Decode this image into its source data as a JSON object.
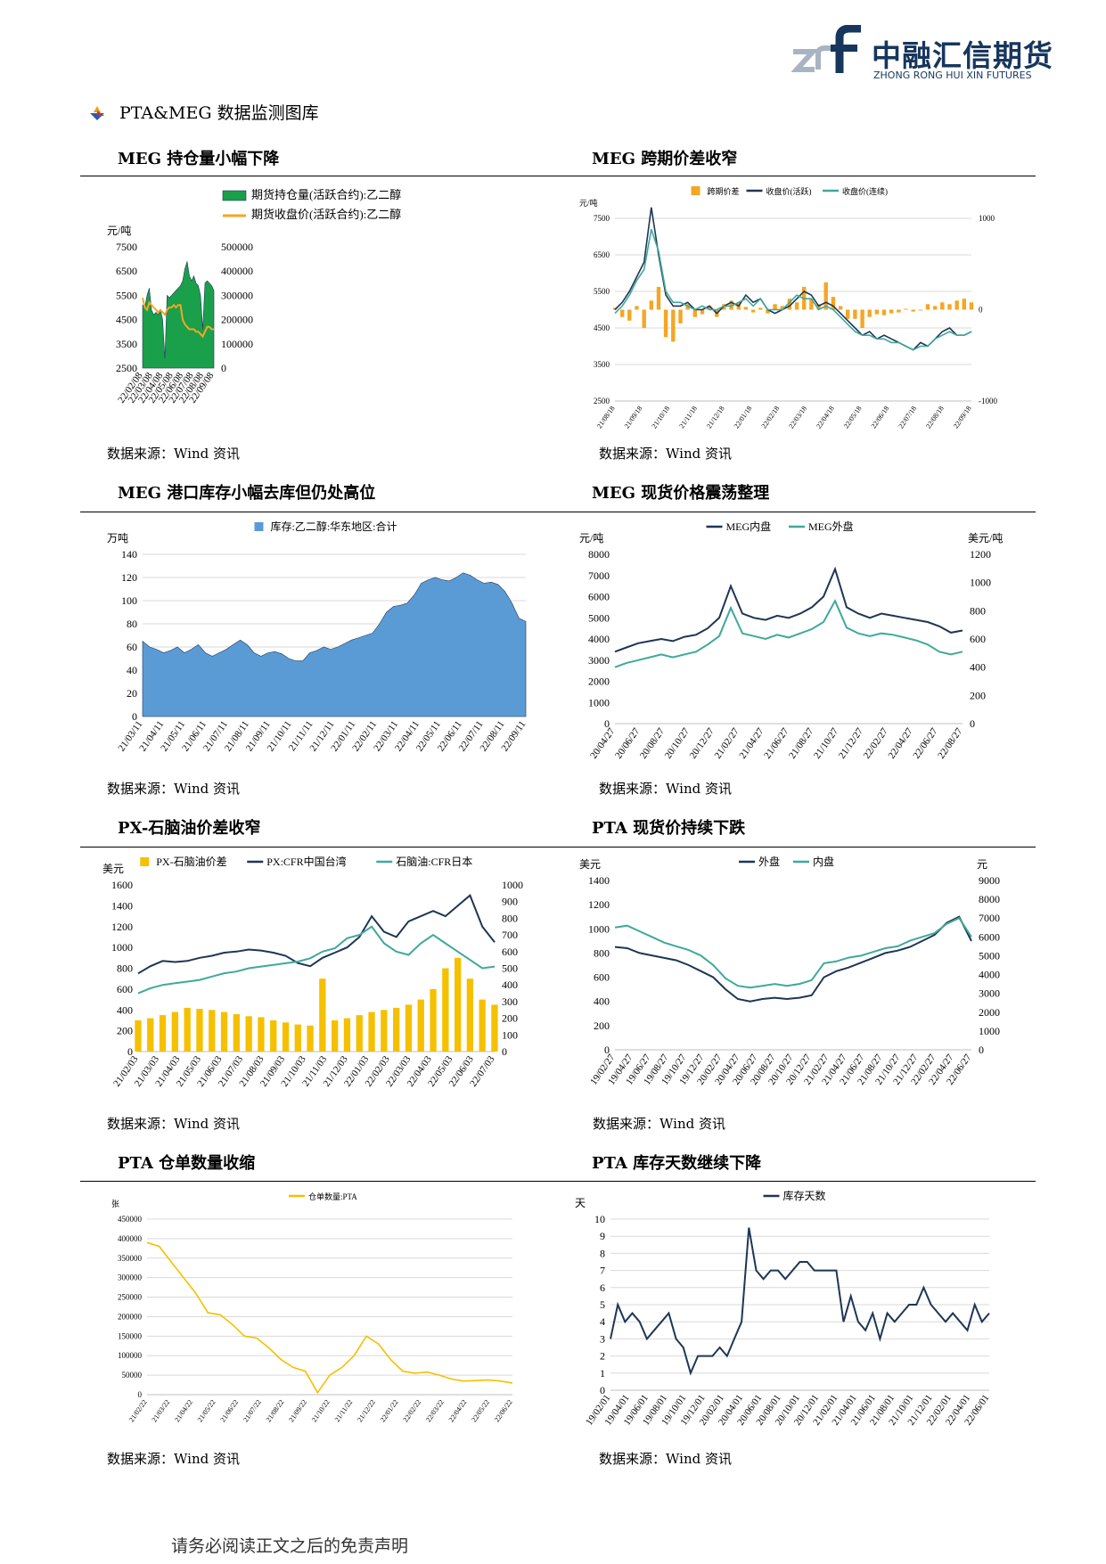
{
  "header": {
    "logo_cn": "中融汇信期货",
    "logo_en": "ZHONG RONG HUI XIN FUTURES"
  },
  "section_title": "PTA&MEG 数据监测图库",
  "footer": "请务必阅读正文之后的免责声明",
  "colors": {
    "green": "#1a9f4a",
    "orange": "#f5a623",
    "navy": "#1e3654",
    "teal": "#3fa99a",
    "blue": "#5b9bd5",
    "gold": "#f5c000"
  },
  "panels": [
    {
      "title": "MEG 持仓量小幅下降",
      "source": "数据来源：Wind 资讯"
    },
    {
      "title": "MEG 跨期价差收窄",
      "source": "数据来源：Wind 资讯"
    },
    {
      "title": "MEG 港口库存小幅去库但仍处高位",
      "source": "数据来源：Wind 资讯"
    },
    {
      "title": "MEG 现货价格震荡整理",
      "source": "数据来源：Wind 资讯"
    },
    {
      "title": "PX-石脑油价差收窄",
      "source": "数据来源：Wind 资讯"
    },
    {
      "title": "PTA 现货价持续下跌",
      "source": "数据来源：Wind 资讯"
    },
    {
      "title": "PTA 仓单数量收缩",
      "source": "数据来源：Wind 资讯"
    },
    {
      "title": "PTA 库存天数继续下降",
      "source": "数据来源：Wind 资讯"
    }
  ],
  "chart_data": [
    {
      "id": "c1",
      "type": "area+line",
      "unit_left": "元/吨",
      "series": [
        {
          "name": "期货持仓量(活跃合约):乙二醇",
          "type": "area",
          "axis": "right",
          "color": "#1a9f4a",
          "values": [
            260000,
            250000,
            300000,
            330000,
            240000,
            220000,
            230000,
            220000,
            240000,
            200000,
            40000,
            300000,
            290000,
            300000,
            310000,
            320000,
            330000,
            340000,
            360000,
            410000,
            440000,
            380000,
            360000,
            380000,
            350000,
            340000,
            300000,
            160000,
            350000,
            360000,
            350000,
            340000,
            320000
          ]
        },
        {
          "name": "期货收盘价(活跃合约):乙二醇",
          "type": "line",
          "axis": "left",
          "color": "#f5a623",
          "values": [
            5400,
            5000,
            4900,
            5200,
            5100,
            5000,
            4900,
            4800,
            4900,
            4800,
            4700,
            4900,
            5000,
            5000,
            5100,
            5000,
            5100,
            5100,
            4500,
            4300,
            4200,
            4100,
            4100,
            4100,
            4000,
            4000,
            3900,
            3800,
            4000,
            4200,
            4200,
            4100,
            4100
          ]
        }
      ],
      "x_ticks": [
        "22/02/08",
        "22/03/08",
        "22/04/08",
        "22/05/08",
        "22/06/08",
        "22/07/08",
        "22/08/08",
        "22/09/08"
      ],
      "y_left": {
        "min": 2500,
        "max": 7500,
        "ticks": [
          2500,
          3500,
          4500,
          5500,
          6500,
          7500
        ]
      },
      "y_right": {
        "min": 0,
        "max": 500000,
        "ticks": [
          0,
          100000,
          200000,
          300000,
          400000,
          500000
        ]
      }
    },
    {
      "id": "c2",
      "type": "bar+line",
      "unit_left": "元/吨",
      "series": [
        {
          "name": "跨期价差",
          "type": "bar",
          "axis": "right",
          "color": "#f5a623",
          "values": [
            20,
            -80,
            -120,
            40,
            -200,
            100,
            250,
            -300,
            -350,
            -150,
            60,
            -80,
            -50,
            40,
            -80,
            60,
            100,
            80,
            30,
            -30,
            20,
            -40,
            60,
            40,
            120,
            80,
            250,
            120,
            60,
            300,
            140,
            40,
            -100,
            -100,
            -200,
            -80,
            -50,
            -60,
            -40,
            -30,
            10,
            -20,
            -10,
            60,
            40,
            80,
            60,
            100,
            120,
            80
          ]
        },
        {
          "name": "收盘价(活跃)",
          "type": "line",
          "axis": "left",
          "color": "#1e3654",
          "values": [
            5000,
            5200,
            5500,
            5900,
            6300,
            7800,
            6500,
            5400,
            5100,
            5100,
            5200,
            5000,
            5000,
            5100,
            4900,
            5100,
            5200,
            5100,
            5400,
            5200,
            5300,
            5000,
            4900,
            5000,
            5100,
            5300,
            5500,
            5400,
            5100,
            5200,
            5100,
            4900,
            4700,
            4500,
            4300,
            4400,
            4200,
            4300,
            4200,
            4100,
            4000,
            3900,
            4100,
            4000,
            4200,
            4400,
            4500,
            4300,
            4300,
            4400
          ]
        },
        {
          "name": "收盘价(连续)",
          "type": "line",
          "axis": "left",
          "color": "#3fa99a",
          "values": [
            4900,
            5100,
            5400,
            5800,
            6100,
            7200,
            6600,
            5500,
            5200,
            5200,
            5100,
            5000,
            5100,
            5000,
            5000,
            5100,
            5100,
            5200,
            5300,
            5100,
            5300,
            5000,
            5000,
            5000,
            5200,
            5400,
            5300,
            5300,
            5000,
            5100,
            5000,
            4800,
            4600,
            4400,
            4300,
            4300,
            4200,
            4200,
            4100,
            4100,
            4000,
            3900,
            4000,
            4000,
            4200,
            4300,
            4400,
            4300,
            4300,
            4400
          ]
        }
      ],
      "x_ticks": [
        "21/08/18",
        "21/09/18",
        "21/10/18",
        "21/11/18",
        "21/12/18",
        "22/01/18",
        "22/02/18",
        "22/03/18",
        "22/04/18",
        "22/05/18",
        "22/06/18",
        "22/07/18",
        "22/08/18",
        "22/09/18"
      ],
      "y_left": {
        "min": 2500,
        "max": 7500,
        "ticks": [
          2500,
          3500,
          4500,
          5500,
          6500,
          7500
        ]
      },
      "y_right": {
        "min": -1000,
        "max": 1000,
        "ticks": [
          -1000,
          0,
          1000
        ]
      }
    },
    {
      "id": "c3",
      "type": "area",
      "unit_left": "万吨",
      "series": [
        {
          "name": "库存:乙二醇:华东地区:合计",
          "type": "area",
          "axis": "left",
          "color": "#5b9bd5",
          "values": [
            65,
            60,
            58,
            55,
            57,
            60,
            55,
            58,
            62,
            55,
            52,
            55,
            58,
            62,
            66,
            62,
            55,
            52,
            55,
            56,
            54,
            50,
            48,
            48,
            55,
            57,
            60,
            58,
            60,
            63,
            66,
            68,
            70,
            72,
            80,
            90,
            95,
            96,
            98,
            105,
            115,
            118,
            120,
            118,
            117,
            120,
            124,
            122,
            118,
            115,
            116,
            114,
            108,
            98,
            85,
            82
          ]
        }
      ],
      "x_ticks": [
        "21/03/11",
        "21/04/11",
        "21/05/11",
        "21/06/11",
        "21/07/11",
        "21/08/11",
        "21/09/11",
        "21/10/11",
        "21/11/11",
        "21/12/11",
        "22/01/11",
        "22/02/11",
        "22/03/11",
        "22/04/11",
        "22/05/11",
        "22/06/11",
        "22/07/11",
        "22/08/11",
        "22/09/11"
      ],
      "y_left": {
        "min": 0,
        "max": 140,
        "ticks": [
          0,
          20,
          40,
          60,
          80,
          100,
          120,
          140
        ]
      }
    },
    {
      "id": "c4",
      "type": "line",
      "unit_left": "元/吨",
      "unit_right": "美元/吨",
      "series": [
        {
          "name": "MEG内盘",
          "type": "line",
          "axis": "left",
          "color": "#1e3654",
          "values": [
            3400,
            3600,
            3800,
            3900,
            4000,
            3900,
            4100,
            4200,
            4500,
            5000,
            6500,
            5200,
            5000,
            4900,
            5100,
            5000,
            5200,
            5500,
            6000,
            7300,
            5500,
            5200,
            5000,
            5200,
            5100,
            5000,
            4900,
            4800,
            4600,
            4300,
            4400
          ]
        },
        {
          "name": "MEG外盘",
          "type": "line",
          "axis": "right",
          "color": "#3fa99a",
          "values": [
            400,
            430,
            450,
            470,
            490,
            470,
            490,
            510,
            560,
            620,
            820,
            640,
            620,
            600,
            630,
            610,
            640,
            670,
            720,
            870,
            680,
            640,
            620,
            640,
            630,
            610,
            590,
            560,
            510,
            490,
            510
          ]
        }
      ],
      "x_ticks": [
        "20/04/27",
        "20/06/27",
        "20/08/27",
        "20/10/27",
        "20/12/27",
        "21/02/27",
        "21/04/27",
        "21/06/27",
        "21/08/27",
        "21/10/27",
        "21/12/27",
        "22/02/27",
        "22/04/27",
        "22/06/27",
        "22/08/27"
      ],
      "y_left": {
        "min": 0,
        "max": 8000,
        "ticks": [
          0,
          1000,
          2000,
          3000,
          4000,
          5000,
          6000,
          7000,
          8000
        ]
      },
      "y_right": {
        "min": 0,
        "max": 1200,
        "ticks": [
          0,
          200,
          400,
          600,
          800,
          1000,
          1200
        ]
      }
    },
    {
      "id": "c5",
      "type": "bar+line",
      "unit_left": "美元",
      "series": [
        {
          "name": "PX-石脑油价差",
          "type": "bar",
          "axis": "left",
          "color": "#f5c000",
          "values": [
            300,
            320,
            350,
            380,
            420,
            410,
            400,
            380,
            360,
            340,
            330,
            300,
            280,
            260,
            250,
            700,
            300,
            320,
            350,
            380,
            400,
            420,
            450,
            500,
            600,
            800,
            900,
            700,
            500,
            450
          ]
        },
        {
          "name": "PX:CFR中国台湾",
          "type": "line",
          "axis": "left",
          "color": "#1e3654",
          "values": [
            750,
            820,
            870,
            860,
            870,
            900,
            920,
            950,
            960,
            980,
            970,
            950,
            920,
            850,
            820,
            900,
            950,
            1000,
            1100,
            1300,
            1150,
            1100,
            1250,
            1300,
            1350,
            1300,
            1400,
            1500,
            1200,
            1050
          ]
        },
        {
          "name": "石脑油:CFR日本",
          "type": "line",
          "axis": "right",
          "color": "#3fa99a",
          "values": [
            350,
            380,
            400,
            410,
            420,
            430,
            450,
            470,
            480,
            500,
            510,
            520,
            530,
            540,
            560,
            600,
            620,
            680,
            700,
            750,
            650,
            600,
            580,
            650,
            700,
            650,
            600,
            550,
            500,
            510
          ]
        }
      ],
      "x_ticks": [
        "21/02/03",
        "21/03/03",
        "21/04/03",
        "21/05/03",
        "21/06/03",
        "21/07/03",
        "21/08/03",
        "21/09/03",
        "21/10/03",
        "21/11/03",
        "21/12/03",
        "22/01/03",
        "22/02/03",
        "22/03/03",
        "22/04/03",
        "22/05/03",
        "22/06/03",
        "22/07/03"
      ],
      "y_left": {
        "min": 0,
        "max": 1600,
        "ticks": [
          0,
          200,
          400,
          600,
          800,
          1000,
          1200,
          1400,
          1600
        ]
      },
      "y_right": {
        "min": 0,
        "max": 1000,
        "ticks": [
          0,
          100,
          200,
          300,
          400,
          500,
          600,
          700,
          800,
          900,
          1000
        ]
      }
    },
    {
      "id": "c6",
      "type": "line",
      "unit_left": "美元",
      "unit_right": "元",
      "series": [
        {
          "name": "外盘",
          "type": "line",
          "axis": "left",
          "color": "#1e3654",
          "values": [
            850,
            840,
            800,
            780,
            760,
            740,
            700,
            650,
            600,
            500,
            420,
            400,
            420,
            430,
            420,
            430,
            450,
            600,
            650,
            680,
            720,
            760,
            800,
            820,
            850,
            900,
            950,
            1050,
            1100,
            900
          ]
        },
        {
          "name": "内盘",
          "type": "line",
          "axis": "right",
          "color": "#3fa99a",
          "values": [
            6500,
            6600,
            6300,
            6000,
            5700,
            5500,
            5300,
            5000,
            4500,
            3800,
            3400,
            3300,
            3400,
            3500,
            3400,
            3500,
            3700,
            4600,
            4700,
            4900,
            5000,
            5200,
            5400,
            5500,
            5800,
            6000,
            6200,
            6700,
            7000,
            6000
          ]
        }
      ],
      "x_ticks": [
        "19/02/27",
        "19/04/27",
        "19/06/27",
        "19/08/27",
        "19/10/27",
        "19/12/27",
        "20/02/27",
        "20/04/27",
        "20/06/27",
        "20/08/27",
        "20/10/27",
        "20/12/27",
        "21/02/27",
        "21/04/27",
        "21/06/27",
        "21/08/27",
        "21/10/27",
        "21/12/27",
        "22/02/27",
        "22/04/27",
        "22/06/27"
      ],
      "y_left": {
        "min": 0,
        "max": 1400,
        "ticks": [
          0,
          200,
          400,
          600,
          800,
          1000,
          1200,
          1400
        ]
      },
      "y_right": {
        "min": 0,
        "max": 9000,
        "ticks": [
          0,
          1000,
          2000,
          3000,
          4000,
          5000,
          6000,
          7000,
          8000,
          9000
        ]
      }
    },
    {
      "id": "c7",
      "type": "line",
      "unit_left": "张",
      "series": [
        {
          "name": "仓单数量:PTA",
          "type": "line",
          "axis": "left",
          "color": "#f5c000",
          "values": [
            390000,
            380000,
            340000,
            300000,
            260000,
            210000,
            205000,
            180000,
            150000,
            145000,
            120000,
            90000,
            70000,
            60000,
            5000,
            50000,
            70000,
            100000,
            150000,
            130000,
            90000,
            60000,
            55000,
            58000,
            50000,
            40000,
            35000,
            36000,
            38000,
            35000,
            30000
          ]
        }
      ],
      "x_ticks": [
        "21/02/22",
        "21/03/22",
        "21/04/22",
        "21/05/22",
        "21/06/22",
        "21/07/22",
        "21/08/22",
        "21/09/22",
        "21/10/22",
        "21/11/22",
        "21/12/22",
        "22/01/22",
        "22/02/22",
        "22/03/22",
        "22/04/22",
        "22/05/22",
        "22/06/22"
      ],
      "y_left": {
        "min": 0,
        "max": 450000,
        "ticks": [
          0,
          50000,
          100000,
          150000,
          200000,
          250000,
          300000,
          350000,
          400000,
          450000
        ]
      }
    },
    {
      "id": "c8",
      "type": "line",
      "unit_left": "天",
      "series": [
        {
          "name": "库存天数",
          "type": "line",
          "axis": "left",
          "color": "#1e3654",
          "values": [
            3,
            5,
            4,
            4.5,
            4,
            3,
            3.5,
            4,
            4.5,
            3,
            2.5,
            1,
            2,
            2,
            2,
            2.5,
            2,
            3,
            4,
            9.5,
            7,
            6.5,
            7,
            7,
            6.5,
            7,
            7.5,
            7.5,
            7,
            7,
            7,
            7,
            4,
            5.5,
            4,
            3.5,
            4.5,
            3,
            4.5,
            4,
            4.5,
            5,
            5,
            6,
            5,
            4.5,
            4,
            4.5,
            4,
            3.5,
            5,
            4,
            4.5
          ]
        }
      ],
      "x_ticks": [
        "19/02/01",
        "19/04/01",
        "19/06/01",
        "19/08/01",
        "19/10/01",
        "19/12/01",
        "20/02/01",
        "20/04/01",
        "20/06/01",
        "20/08/01",
        "20/10/01",
        "20/12/01",
        "21/02/01",
        "21/04/01",
        "21/06/01",
        "21/08/01",
        "21/10/01",
        "21/12/01",
        "22/02/01",
        "22/04/01",
        "22/06/01"
      ],
      "y_left": {
        "min": 0,
        "max": 10,
        "ticks": [
          0,
          1,
          2,
          3,
          4,
          5,
          6,
          7,
          8,
          9,
          10
        ]
      }
    }
  ]
}
